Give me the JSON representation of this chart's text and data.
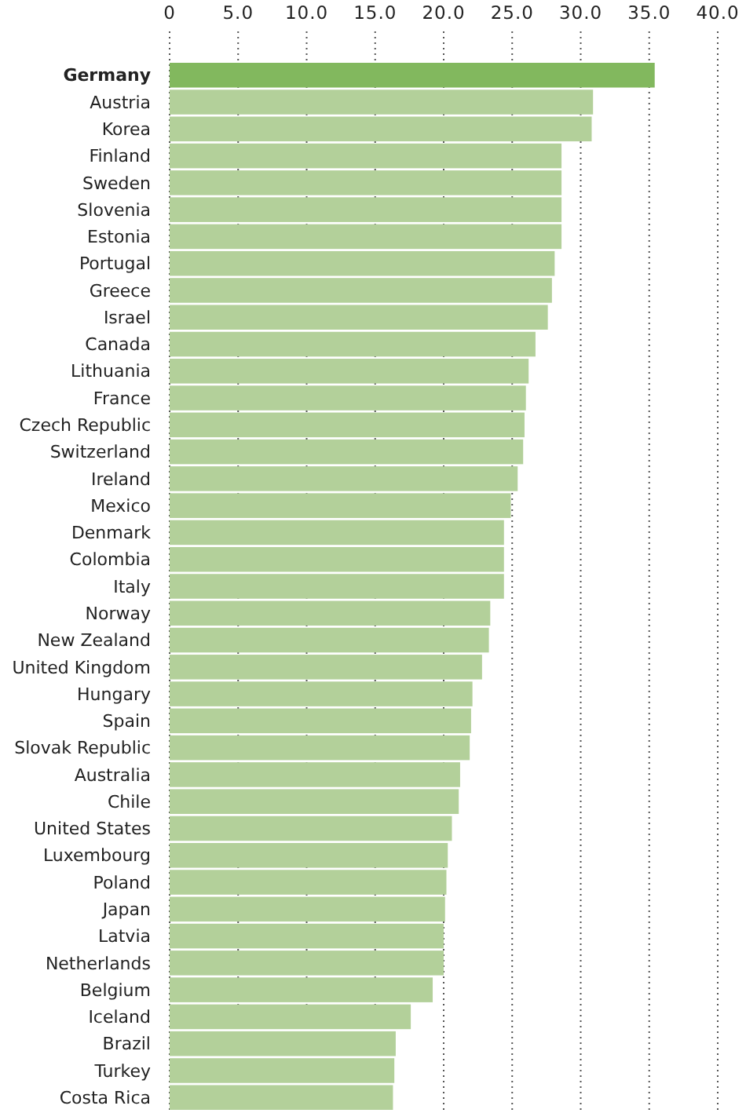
{
  "chart_data": {
    "type": "bar",
    "orientation": "horizontal",
    "categories": [
      "Germany",
      "Austria",
      "Korea",
      "Finland",
      "Sweden",
      "Slovenia",
      "Estonia",
      "Portugal",
      "Greece",
      "Israel",
      "Canada",
      "Lithuania",
      "France",
      "Czech Republic",
      "Switzerland",
      "Ireland",
      "Mexico",
      "Denmark",
      "Colombia",
      "Italy",
      "Norway",
      "New Zealand",
      "United Kingdom",
      "Hungary",
      "Spain",
      "Slovak Republic",
      "Australia",
      "Chile",
      "United States",
      "Luxembourg",
      "Poland",
      "Japan",
      "Latvia",
      "Netherlands",
      "Belgium",
      "Iceland",
      "Brazil",
      "Turkey",
      "Costa Rica"
    ],
    "values": [
      35.4,
      30.9,
      30.8,
      28.6,
      28.6,
      28.6,
      28.6,
      28.1,
      27.9,
      27.6,
      26.7,
      26.2,
      26.0,
      25.9,
      25.8,
      25.4,
      24.9,
      24.4,
      24.4,
      24.4,
      23.4,
      23.3,
      22.8,
      22.1,
      22.0,
      21.9,
      21.2,
      21.1,
      20.6,
      20.3,
      20.2,
      20.1,
      20.0,
      20.0,
      19.2,
      17.6,
      16.5,
      16.4,
      16.3
    ],
    "colors": [
      "#82b85e",
      "#b3d09a",
      "#b3d09a",
      "#b3d09a",
      "#b3d09a",
      "#b3d09a",
      "#b3d09a",
      "#b3d09a",
      "#b3d09a",
      "#b3d09a",
      "#b3d09a",
      "#b3d09a",
      "#b3d09a",
      "#b3d09a",
      "#b3d09a",
      "#b3d09a",
      "#b3d09a",
      "#b3d09a",
      "#b3d09a",
      "#b3d09a",
      "#b3d09a",
      "#b3d09a",
      "#b3d09a",
      "#b3d09a",
      "#b3d09a",
      "#b3d09a",
      "#b3d09a",
      "#b3d09a",
      "#b3d09a",
      "#b3d09a",
      "#b3d09a",
      "#b3d09a",
      "#b3d09a",
      "#b3d09a",
      "#b3d09a",
      "#b3d09a",
      "#b3d09a",
      "#b3d09a",
      "#b3d09a"
    ],
    "xlim": [
      0,
      40
    ],
    "xticks": [
      0,
      {
        "value": 5,
        "label": "5.0"
      },
      {
        "value": 10,
        "label": "10.0"
      },
      {
        "value": 15,
        "label": "15.0"
      },
      {
        "value": 20,
        "label": "20.0"
      },
      {
        "value": 25,
        "label": "25.0"
      },
      {
        "value": 30,
        "label": "30.0"
      },
      {
        "value": 35,
        "label": "35.0"
      },
      {
        "value": 40,
        "label": "40.0"
      }
    ],
    "grid": "x"
  }
}
